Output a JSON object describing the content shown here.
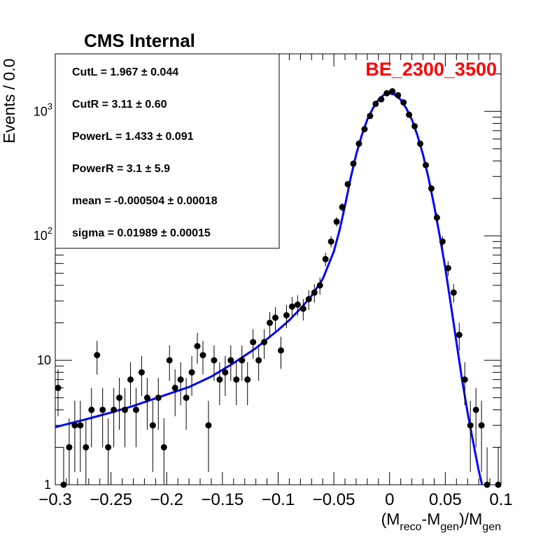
{
  "chart_data": {
    "type": "scatter",
    "title": "CMS Internal",
    "tag": "BE_2300_3500",
    "tag_color": "#ff0000",
    "fit_color": "#0000ff",
    "ylabel": "Events / 0.0",
    "xlabel": {
      "prefix": "(M",
      "sub1": "reco",
      "mid": "-M",
      "sub2": "gen",
      "after": ")/M",
      "sub3": "gen"
    },
    "xlim": [
      -0.3,
      0.1
    ],
    "ylim": [
      1,
      2900
    ],
    "log_y": true,
    "x_tick_labels": [
      "−0.3",
      "−0.25",
      "−0.2",
      "−0.15",
      "−0.1",
      "−0.05",
      "0",
      "0.05",
      "0.1"
    ],
    "x_tick_values": [
      -0.3,
      -0.25,
      -0.2,
      -0.15,
      -0.1,
      -0.05,
      0,
      0.05,
      0.1
    ],
    "y_tick_labels": [
      {
        "base": "1",
        "exp": ""
      },
      {
        "base": "10",
        "exp": ""
      },
      {
        "base": "10",
        "exp": "2"
      },
      {
        "base": "10",
        "exp": "3"
      }
    ],
    "y_tick_values": [
      1,
      10,
      100,
      1000
    ],
    "stats": [
      {
        "label": "CutL = ",
        "value": "1.967",
        "err": "0.044"
      },
      {
        "label": "CutR = ",
        "value": "3.11",
        "err": "0.60"
      },
      {
        "label": "PowerL = ",
        "value": "1.433",
        "err": "0.091"
      },
      {
        "label": "PowerR = ",
        "value": "3.1",
        "err": "5.9"
      },
      {
        "label": "mean = ",
        "value": "-0.000504",
        "err": "0.00018"
      },
      {
        "label": "sigma = ",
        "value": "0.01989",
        "err": "0.00015"
      }
    ],
    "points": [
      {
        "x": -0.2975,
        "y": 6
      },
      {
        "x": -0.2925,
        "y": 1
      },
      {
        "x": -0.2875,
        "y": 2
      },
      {
        "x": -0.2825,
        "y": 3
      },
      {
        "x": -0.2775,
        "y": 3
      },
      {
        "x": -0.2725,
        "y": 2
      },
      {
        "x": -0.2675,
        "y": 4
      },
      {
        "x": -0.2625,
        "y": 11
      },
      {
        "x": -0.2575,
        "y": 4
      },
      {
        "x": -0.2525,
        "y": 2
      },
      {
        "x": -0.2475,
        "y": 4
      },
      {
        "x": -0.2425,
        "y": 5
      },
      {
        "x": -0.2375,
        "y": 4
      },
      {
        "x": -0.2325,
        "y": 7
      },
      {
        "x": -0.2275,
        "y": 4
      },
      {
        "x": -0.2225,
        "y": 8
      },
      {
        "x": -0.2175,
        "y": 5
      },
      {
        "x": -0.2125,
        "y": 3
      },
      {
        "x": -0.2075,
        "y": 5
      },
      {
        "x": -0.2025,
        "y": 2
      },
      {
        "x": -0.1975,
        "y": 10
      },
      {
        "x": -0.1925,
        "y": 6
      },
      {
        "x": -0.1875,
        "y": 7
      },
      {
        "x": -0.1825,
        "y": 5
      },
      {
        "x": -0.1775,
        "y": 8
      },
      {
        "x": -0.1725,
        "y": 13
      },
      {
        "x": -0.1675,
        "y": 11
      },
      {
        "x": -0.1625,
        "y": 3
      },
      {
        "x": -0.1575,
        "y": 10
      },
      {
        "x": -0.1525,
        "y": 7
      },
      {
        "x": -0.1475,
        "y": 8
      },
      {
        "x": -0.1425,
        "y": 10
      },
      {
        "x": -0.1375,
        "y": 7
      },
      {
        "x": -0.1325,
        "y": 10
      },
      {
        "x": -0.1275,
        "y": 7
      },
      {
        "x": -0.1225,
        "y": 14
      },
      {
        "x": -0.1175,
        "y": 10
      },
      {
        "x": -0.1125,
        "y": 14
      },
      {
        "x": -0.1075,
        "y": 20
      },
      {
        "x": -0.1025,
        "y": 22
      },
      {
        "x": -0.0975,
        "y": 12
      },
      {
        "x": -0.0925,
        "y": 23
      },
      {
        "x": -0.0875,
        "y": 27
      },
      {
        "x": -0.0825,
        "y": 28
      },
      {
        "x": -0.0775,
        "y": 26
      },
      {
        "x": -0.0725,
        "y": 31
      },
      {
        "x": -0.0675,
        "y": 35
      },
      {
        "x": -0.0625,
        "y": 40
      },
      {
        "x": -0.0575,
        "y": 65
      },
      {
        "x": -0.0525,
        "y": 90
      },
      {
        "x": -0.0475,
        "y": 130
      },
      {
        "x": -0.0425,
        "y": 170
      },
      {
        "x": -0.0375,
        "y": 260
      },
      {
        "x": -0.0325,
        "y": 380
      },
      {
        "x": -0.0275,
        "y": 550
      },
      {
        "x": -0.0225,
        "y": 720
      },
      {
        "x": -0.0175,
        "y": 920
      },
      {
        "x": -0.0125,
        "y": 1150
      },
      {
        "x": -0.0075,
        "y": 1250
      },
      {
        "x": -0.0025,
        "y": 1400
      },
      {
        "x": 0.0025,
        "y": 1450
      },
      {
        "x": 0.0075,
        "y": 1350
      },
      {
        "x": 0.0125,
        "y": 1180
      },
      {
        "x": 0.0175,
        "y": 940
      },
      {
        "x": 0.0225,
        "y": 760
      },
      {
        "x": 0.0275,
        "y": 550
      },
      {
        "x": 0.0325,
        "y": 370
      },
      {
        "x": 0.0375,
        "y": 240
      },
      {
        "x": 0.0425,
        "y": 140
      },
      {
        "x": 0.0475,
        "y": 90
      },
      {
        "x": 0.0525,
        "y": 55
      },
      {
        "x": 0.0575,
        "y": 35
      },
      {
        "x": 0.0625,
        "y": 16
      },
      {
        "x": 0.0675,
        "y": 7
      },
      {
        "x": 0.0725,
        "y": 3
      },
      {
        "x": 0.0775,
        "y": 4
      },
      {
        "x": 0.0825,
        "y": 3
      },
      {
        "x": 0.0875,
        "y": 1
      },
      {
        "x": 0.0975,
        "y": 1
      }
    ],
    "fit": [
      {
        "x": -0.3,
        "y": 2.9
      },
      {
        "x": -0.27,
        "y": 3.4
      },
      {
        "x": -0.25,
        "y": 3.8
      },
      {
        "x": -0.23,
        "y": 4.3
      },
      {
        "x": -0.2,
        "y": 5.3
      },
      {
        "x": -0.18,
        "y": 6.1
      },
      {
        "x": -0.16,
        "y": 7.4
      },
      {
        "x": -0.14,
        "y": 9.5
      },
      {
        "x": -0.12,
        "y": 12.5
      },
      {
        "x": -0.1,
        "y": 17.5
      },
      {
        "x": -0.09,
        "y": 21
      },
      {
        "x": -0.08,
        "y": 26
      },
      {
        "x": -0.07,
        "y": 33
      },
      {
        "x": -0.06,
        "y": 45
      },
      {
        "x": -0.05,
        "y": 75
      },
      {
        "x": -0.045,
        "y": 110
      },
      {
        "x": -0.04,
        "y": 175
      },
      {
        "x": -0.035,
        "y": 290
      },
      {
        "x": -0.03,
        "y": 450
      },
      {
        "x": -0.025,
        "y": 640
      },
      {
        "x": -0.02,
        "y": 860
      },
      {
        "x": -0.015,
        "y": 1060
      },
      {
        "x": -0.01,
        "y": 1240
      },
      {
        "x": -0.005,
        "y": 1360
      },
      {
        "x": 0.0,
        "y": 1400
      },
      {
        "x": 0.005,
        "y": 1360
      },
      {
        "x": 0.01,
        "y": 1240
      },
      {
        "x": 0.015,
        "y": 1060
      },
      {
        "x": 0.02,
        "y": 860
      },
      {
        "x": 0.025,
        "y": 640
      },
      {
        "x": 0.03,
        "y": 450
      },
      {
        "x": 0.035,
        "y": 290
      },
      {
        "x": 0.04,
        "y": 175
      },
      {
        "x": 0.045,
        "y": 100
      },
      {
        "x": 0.05,
        "y": 55
      },
      {
        "x": 0.055,
        "y": 28
      },
      {
        "x": 0.06,
        "y": 14
      },
      {
        "x": 0.065,
        "y": 7
      },
      {
        "x": 0.07,
        "y": 3.8
      },
      {
        "x": 0.075,
        "y": 2.2
      },
      {
        "x": 0.08,
        "y": 1.3
      },
      {
        "x": 0.083,
        "y": 1.0
      }
    ]
  }
}
